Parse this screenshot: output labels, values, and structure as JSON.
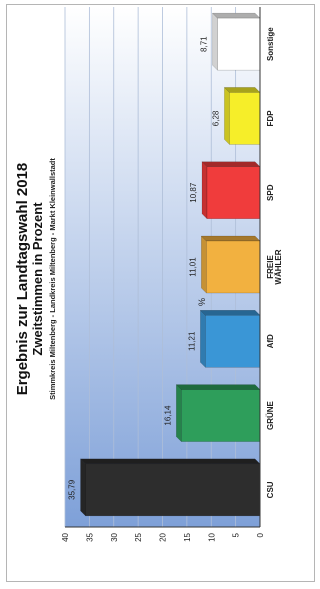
{
  "colors": {
    "plot_gradient_start": "#7ea0d8",
    "plot_gradient_end": "#ffffff",
    "grid": "#aebed8",
    "axis": "#333333"
  },
  "chart_data": {
    "type": "bar",
    "title": "Ergebnis zur Landtagswahl 2018",
    "subtitle": "Zweitstimmen in Prozent",
    "subtitle2": "Stimmkreis Miltenberg - Landkreis Miltenberg - Markt Kleinwallstadt",
    "xlabel": "",
    "ylabel": "%",
    "ylim": [
      0,
      40
    ],
    "yticks": [
      0,
      5,
      10,
      15,
      20,
      25,
      30,
      35,
      40
    ],
    "grid": true,
    "legend": "none",
    "categories": [
      "CSU",
      "GRÜNE",
      "AfD",
      "FREIE WÄHLER",
      "SPD",
      "FDP",
      "Sonstige"
    ],
    "values": [
      35.79,
      16.14,
      11.21,
      11.01,
      10.87,
      6.28,
      8.71
    ],
    "value_labels": [
      "35,79",
      "16,14",
      "11,21",
      "11,01",
      "10,87",
      "6,28",
      "8,71"
    ],
    "bar_colors": [
      "#2d2d2d",
      "#2e9e5b",
      "#3a96d6",
      "#f2b140",
      "#f03c3c",
      "#f6ee29",
      "#ffffff"
    ]
  }
}
